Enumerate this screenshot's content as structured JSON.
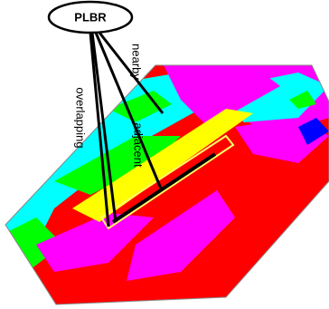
{
  "labels": {
    "title": "PLBR",
    "nearby": "nearby",
    "adjacent": "adjacent",
    "overlapping": "overlapping"
  }
}
